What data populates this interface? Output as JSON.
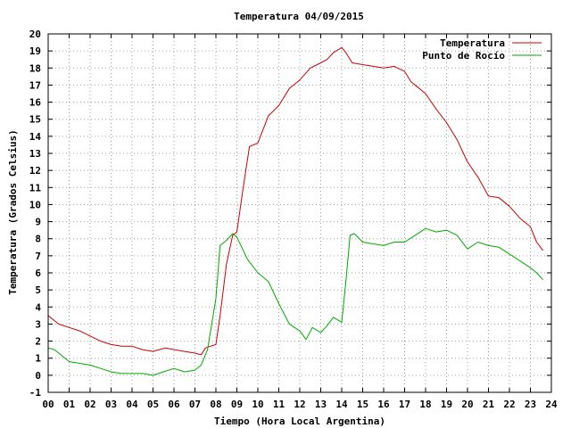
{
  "chart_data": {
    "type": "line",
    "title": "Temperatura 04/09/2015",
    "xlabel": "Tiempo (Hora Local Argentina)",
    "ylabel": "Temperatura (Grados Celsius)",
    "xlim": [
      0,
      24
    ],
    "ylim": [
      -1,
      20
    ],
    "x_ticks": [
      "00",
      "01",
      "02",
      "03",
      "04",
      "05",
      "06",
      "07",
      "08",
      "09",
      "10",
      "11",
      "12",
      "13",
      "14",
      "15",
      "16",
      "17",
      "18",
      "19",
      "20",
      "21",
      "22",
      "23",
      "24"
    ],
    "y_ticks": [
      "-1",
      "0",
      "1",
      "2",
      "3",
      "4",
      "5",
      "6",
      "7",
      "8",
      "9",
      "10",
      "11",
      "12",
      "13",
      "14",
      "15",
      "16",
      "17",
      "18",
      "19",
      "20"
    ],
    "grid": true,
    "legend_position": "top-right",
    "series": [
      {
        "name": "Temperatura",
        "color": "#cc0000",
        "x": [
          0.0,
          0.3,
          0.5,
          1.0,
          1.5,
          2.0,
          2.5,
          3.0,
          3.5,
          4.0,
          4.5,
          5.0,
          5.3,
          5.6,
          6.0,
          6.5,
          7.0,
          7.3,
          7.5,
          8.0,
          8.2,
          8.5,
          8.8,
          9.0,
          9.3,
          9.6,
          10.0,
          10.5,
          11.0,
          11.5,
          12.0,
          12.5,
          13.0,
          13.3,
          13.6,
          14.0,
          14.2,
          14.5,
          15.0,
          15.5,
          16.0,
          16.5,
          17.0,
          17.3,
          17.6,
          18.0,
          18.5,
          19.0,
          19.5,
          20.0,
          20.5,
          21.0,
          21.5,
          22.0,
          22.5,
          23.0,
          23.3,
          23.6
        ],
        "y": [
          3.5,
          3.2,
          3.0,
          2.8,
          2.6,
          2.3,
          2.0,
          1.8,
          1.7,
          1.7,
          1.5,
          1.4,
          1.5,
          1.6,
          1.5,
          1.4,
          1.3,
          1.2,
          1.6,
          1.8,
          3.5,
          6.5,
          8.2,
          8.4,
          11.0,
          13.4,
          13.6,
          15.2,
          15.8,
          16.8,
          17.3,
          18.0,
          18.3,
          18.5,
          18.9,
          19.2,
          18.9,
          18.3,
          18.2,
          18.1,
          18.0,
          18.1,
          17.8,
          17.2,
          16.9,
          16.5,
          15.6,
          14.8,
          13.8,
          12.5,
          11.6,
          10.5,
          10.4,
          9.9,
          9.2,
          8.7,
          7.8,
          7.3
        ]
      },
      {
        "name": "Punto de Rocío",
        "color": "#00aa00",
        "x": [
          0.0,
          0.3,
          0.6,
          1.0,
          1.5,
          2.0,
          2.5,
          3.0,
          3.5,
          4.0,
          4.5,
          5.0,
          5.5,
          6.0,
          6.5,
          7.0,
          7.3,
          7.6,
          8.0,
          8.2,
          8.5,
          8.8,
          9.0,
          9.5,
          10.0,
          10.5,
          11.0,
          11.5,
          12.0,
          12.3,
          12.6,
          13.0,
          13.3,
          13.6,
          14.0,
          14.2,
          14.4,
          14.6,
          15.0,
          15.5,
          16.0,
          16.5,
          17.0,
          17.5,
          18.0,
          18.5,
          19.0,
          19.5,
          20.0,
          20.5,
          21.0,
          21.5,
          22.0,
          22.5,
          23.0,
          23.3,
          23.6
        ],
        "y": [
          1.6,
          1.5,
          1.2,
          0.8,
          0.7,
          0.6,
          0.4,
          0.2,
          0.1,
          0.1,
          0.1,
          0.0,
          0.2,
          0.4,
          0.2,
          0.3,
          0.6,
          1.5,
          4.5,
          7.6,
          7.9,
          8.3,
          8.1,
          6.8,
          6.0,
          5.5,
          4.2,
          3.0,
          2.6,
          2.1,
          2.8,
          2.5,
          2.9,
          3.4,
          3.1,
          5.5,
          8.2,
          8.3,
          7.8,
          7.7,
          7.6,
          7.8,
          7.8,
          8.2,
          8.6,
          8.4,
          8.5,
          8.2,
          7.4,
          7.8,
          7.6,
          7.5,
          7.1,
          6.7,
          6.3,
          6.0,
          5.6
        ]
      }
    ]
  }
}
